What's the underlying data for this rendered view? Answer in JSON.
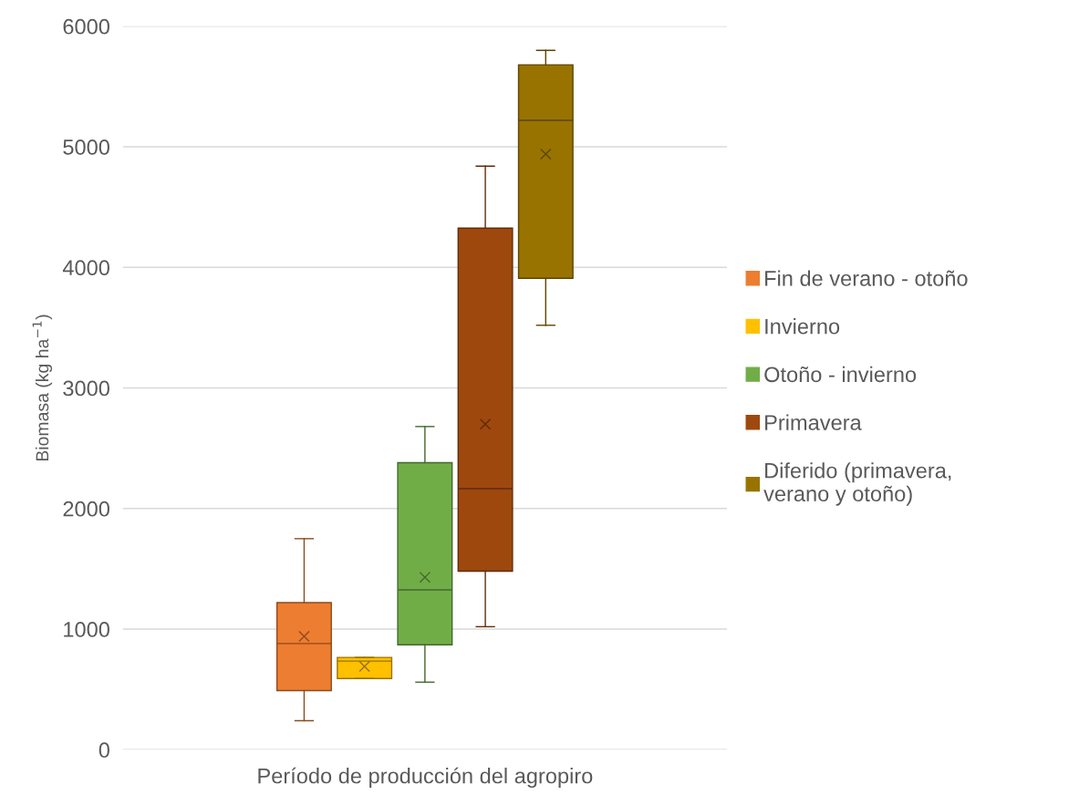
{
  "chart_data": {
    "type": "box",
    "xlabel": "Período de producción del agropiro",
    "ylabel": "Biomasa (kg ha$^{−1}$)",
    "categories": [
      null
    ],
    "ylim": [
      0,
      6000
    ],
    "yticks": [
      0,
      1000,
      2000,
      3000,
      4000,
      5000,
      6000
    ],
    "grid": "y",
    "legend": "right",
    "marker": "cross",
    "series": [
      {
        "name": "Fin de verano - otoño",
        "color": "#ed7d31",
        "boxes": [
          {
            "low": 240,
            "q1": 490,
            "median": 880,
            "q3": 1220,
            "high": 1750,
            "mean": 940
          }
        ]
      },
      {
        "name": "Invierno",
        "color": "#ffc000",
        "boxes": [
          {
            "low": 590,
            "q1": 590,
            "median": 735,
            "q3": 765,
            "high": 765,
            "mean": 690
          }
        ]
      },
      {
        "name": "Otoño - invierno",
        "color": "#70ad47",
        "boxes": [
          {
            "low": 560,
            "q1": 870,
            "median": 1325,
            "q3": 2380,
            "high": 2680,
            "mean": 1430
          }
        ]
      },
      {
        "name": "Primavera",
        "color": "#9e480e",
        "boxes": [
          {
            "low": 1020,
            "q1": 1480,
            "median": 2165,
            "q3": 4325,
            "high": 4840,
            "mean": 2700
          }
        ]
      },
      {
        "name": "Diferido (primavera, verano y otoño)",
        "color": "#997300",
        "boxes": [
          {
            "low": 3520,
            "q1": 3910,
            "median": 5220,
            "q3": 5680,
            "high": 5800,
            "mean": 4940
          }
        ]
      }
    ]
  }
}
